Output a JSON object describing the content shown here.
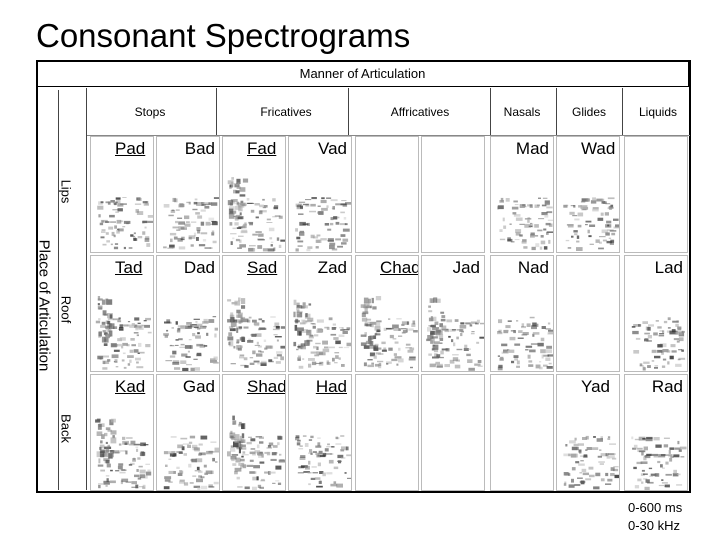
{
  "title": "Consonant Spectrograms",
  "manner_header": "Manner of Articulation",
  "place_header": "Place of Articulation",
  "columns": [
    "Stops",
    "Fricatives",
    "Affricatives",
    "Nasals",
    "Glides",
    "Liquids"
  ],
  "rows": [
    {
      "label": "Lips",
      "words": [
        "Pad",
        "Bad",
        "Fad",
        "Vad",
        "",
        "",
        "Mad",
        "Wad",
        ""
      ]
    },
    {
      "label": "Roof",
      "words": [
        "Tad",
        "Dad",
        "Sad",
        "Zad",
        "Chad",
        "Jad",
        "Nad",
        "",
        "Lad"
      ]
    },
    {
      "label": "Back",
      "words": [
        "Kad",
        "Gad",
        "Shad",
        "Had",
        "",
        "",
        "",
        "Yad",
        "Rad"
      ]
    }
  ],
  "footer": {
    "time": "0-600 ms",
    "freq": "0-30 kHz"
  }
}
